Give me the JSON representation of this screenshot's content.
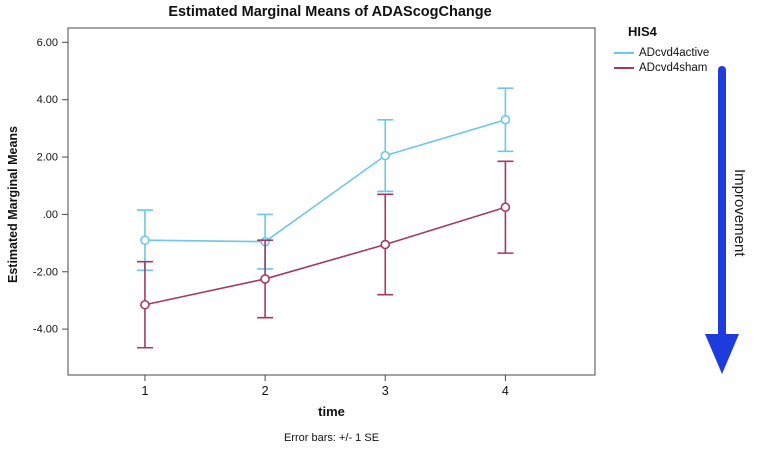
{
  "title": "Estimated Marginal Means of ADAScogChange",
  "caption": "Error bars: +/- 1 SE",
  "legend": {
    "title": "HIS4",
    "entries": [
      {
        "label": "ADcvd4active",
        "color": "#6ec6e8"
      },
      {
        "label": "ADcvd4sham",
        "color": "#a03c5e"
      }
    ]
  },
  "annotation": {
    "label": "Improvement",
    "arrow_color": "#1e3bdc"
  },
  "chart_data": {
    "type": "line",
    "title": "Estimated Marginal Means of ADAScogChange",
    "xlabel": "time",
    "ylabel": "Estimated Marginal Means",
    "x": [
      1,
      2,
      3,
      4
    ],
    "x_tick_labels": [
      "1",
      "2",
      "3",
      "4"
    ],
    "y_ticks": [
      6,
      4,
      2,
      0,
      -2,
      -4
    ],
    "y_tick_labels": [
      "6.00",
      "4.00",
      "2.00",
      ".00",
      "-2.00",
      "-4.00"
    ],
    "ylim": [
      -5.6,
      6.5
    ],
    "grid": false,
    "legend_position": "right",
    "error_bars": "+/- 1 SE",
    "series": [
      {
        "name": "ADcvd4active",
        "color": "#6ec6e8",
        "means": [
          -0.9,
          -0.95,
          2.05,
          3.3
        ],
        "se": [
          1.05,
          0.95,
          1.25,
          1.1
        ]
      },
      {
        "name": "ADcvd4sham",
        "color": "#a03c5e",
        "means": [
          -3.15,
          -2.25,
          -1.05,
          0.25
        ],
        "se": [
          1.5,
          1.35,
          1.75,
          1.6
        ]
      }
    ]
  }
}
